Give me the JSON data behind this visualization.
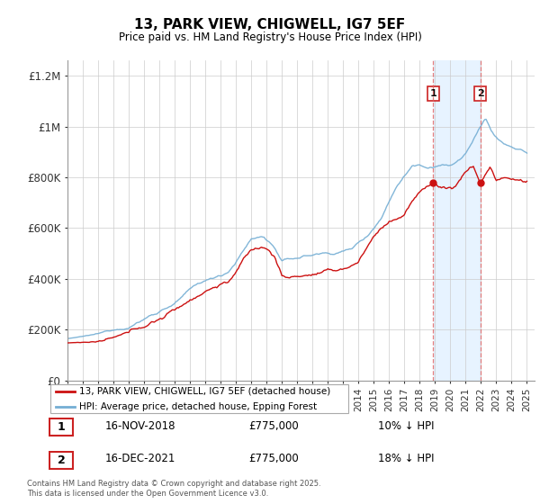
{
  "title": "13, PARK VIEW, CHIGWELL, IG7 5EF",
  "subtitle": "Price paid vs. HM Land Registry's House Price Index (HPI)",
  "ylabel_ticks": [
    "£0",
    "£200K",
    "£400K",
    "£600K",
    "£800K",
    "£1M",
    "£1.2M"
  ],
  "ytick_vals": [
    0,
    200000,
    400000,
    600000,
    800000,
    1000000,
    1200000
  ],
  "xstart_year": 1995,
  "xend_year": 2025,
  "sale1_date": "16-NOV-2018",
  "sale1_price": 775000,
  "sale1_hpi": "10% ↓ HPI",
  "sale1_x": 2018.875,
  "sale2_date": "16-DEC-2021",
  "sale2_price": 775000,
  "sale2_hpi": "18% ↓ HPI",
  "sale2_x": 2021.958,
  "line1_color": "#cc1111",
  "line2_color": "#74aed4",
  "shade_color": "#ddeeff",
  "vline_color": "#e06060",
  "legend_label1": "13, PARK VIEW, CHIGWELL, IG7 5EF (detached house)",
  "legend_label2": "HPI: Average price, detached house, Epping Forest",
  "footer": "Contains HM Land Registry data © Crown copyright and database right 2025.\nThis data is licensed under the Open Government Licence v3.0.",
  "background_color": "#ffffff",
  "grid_color": "#cccccc"
}
